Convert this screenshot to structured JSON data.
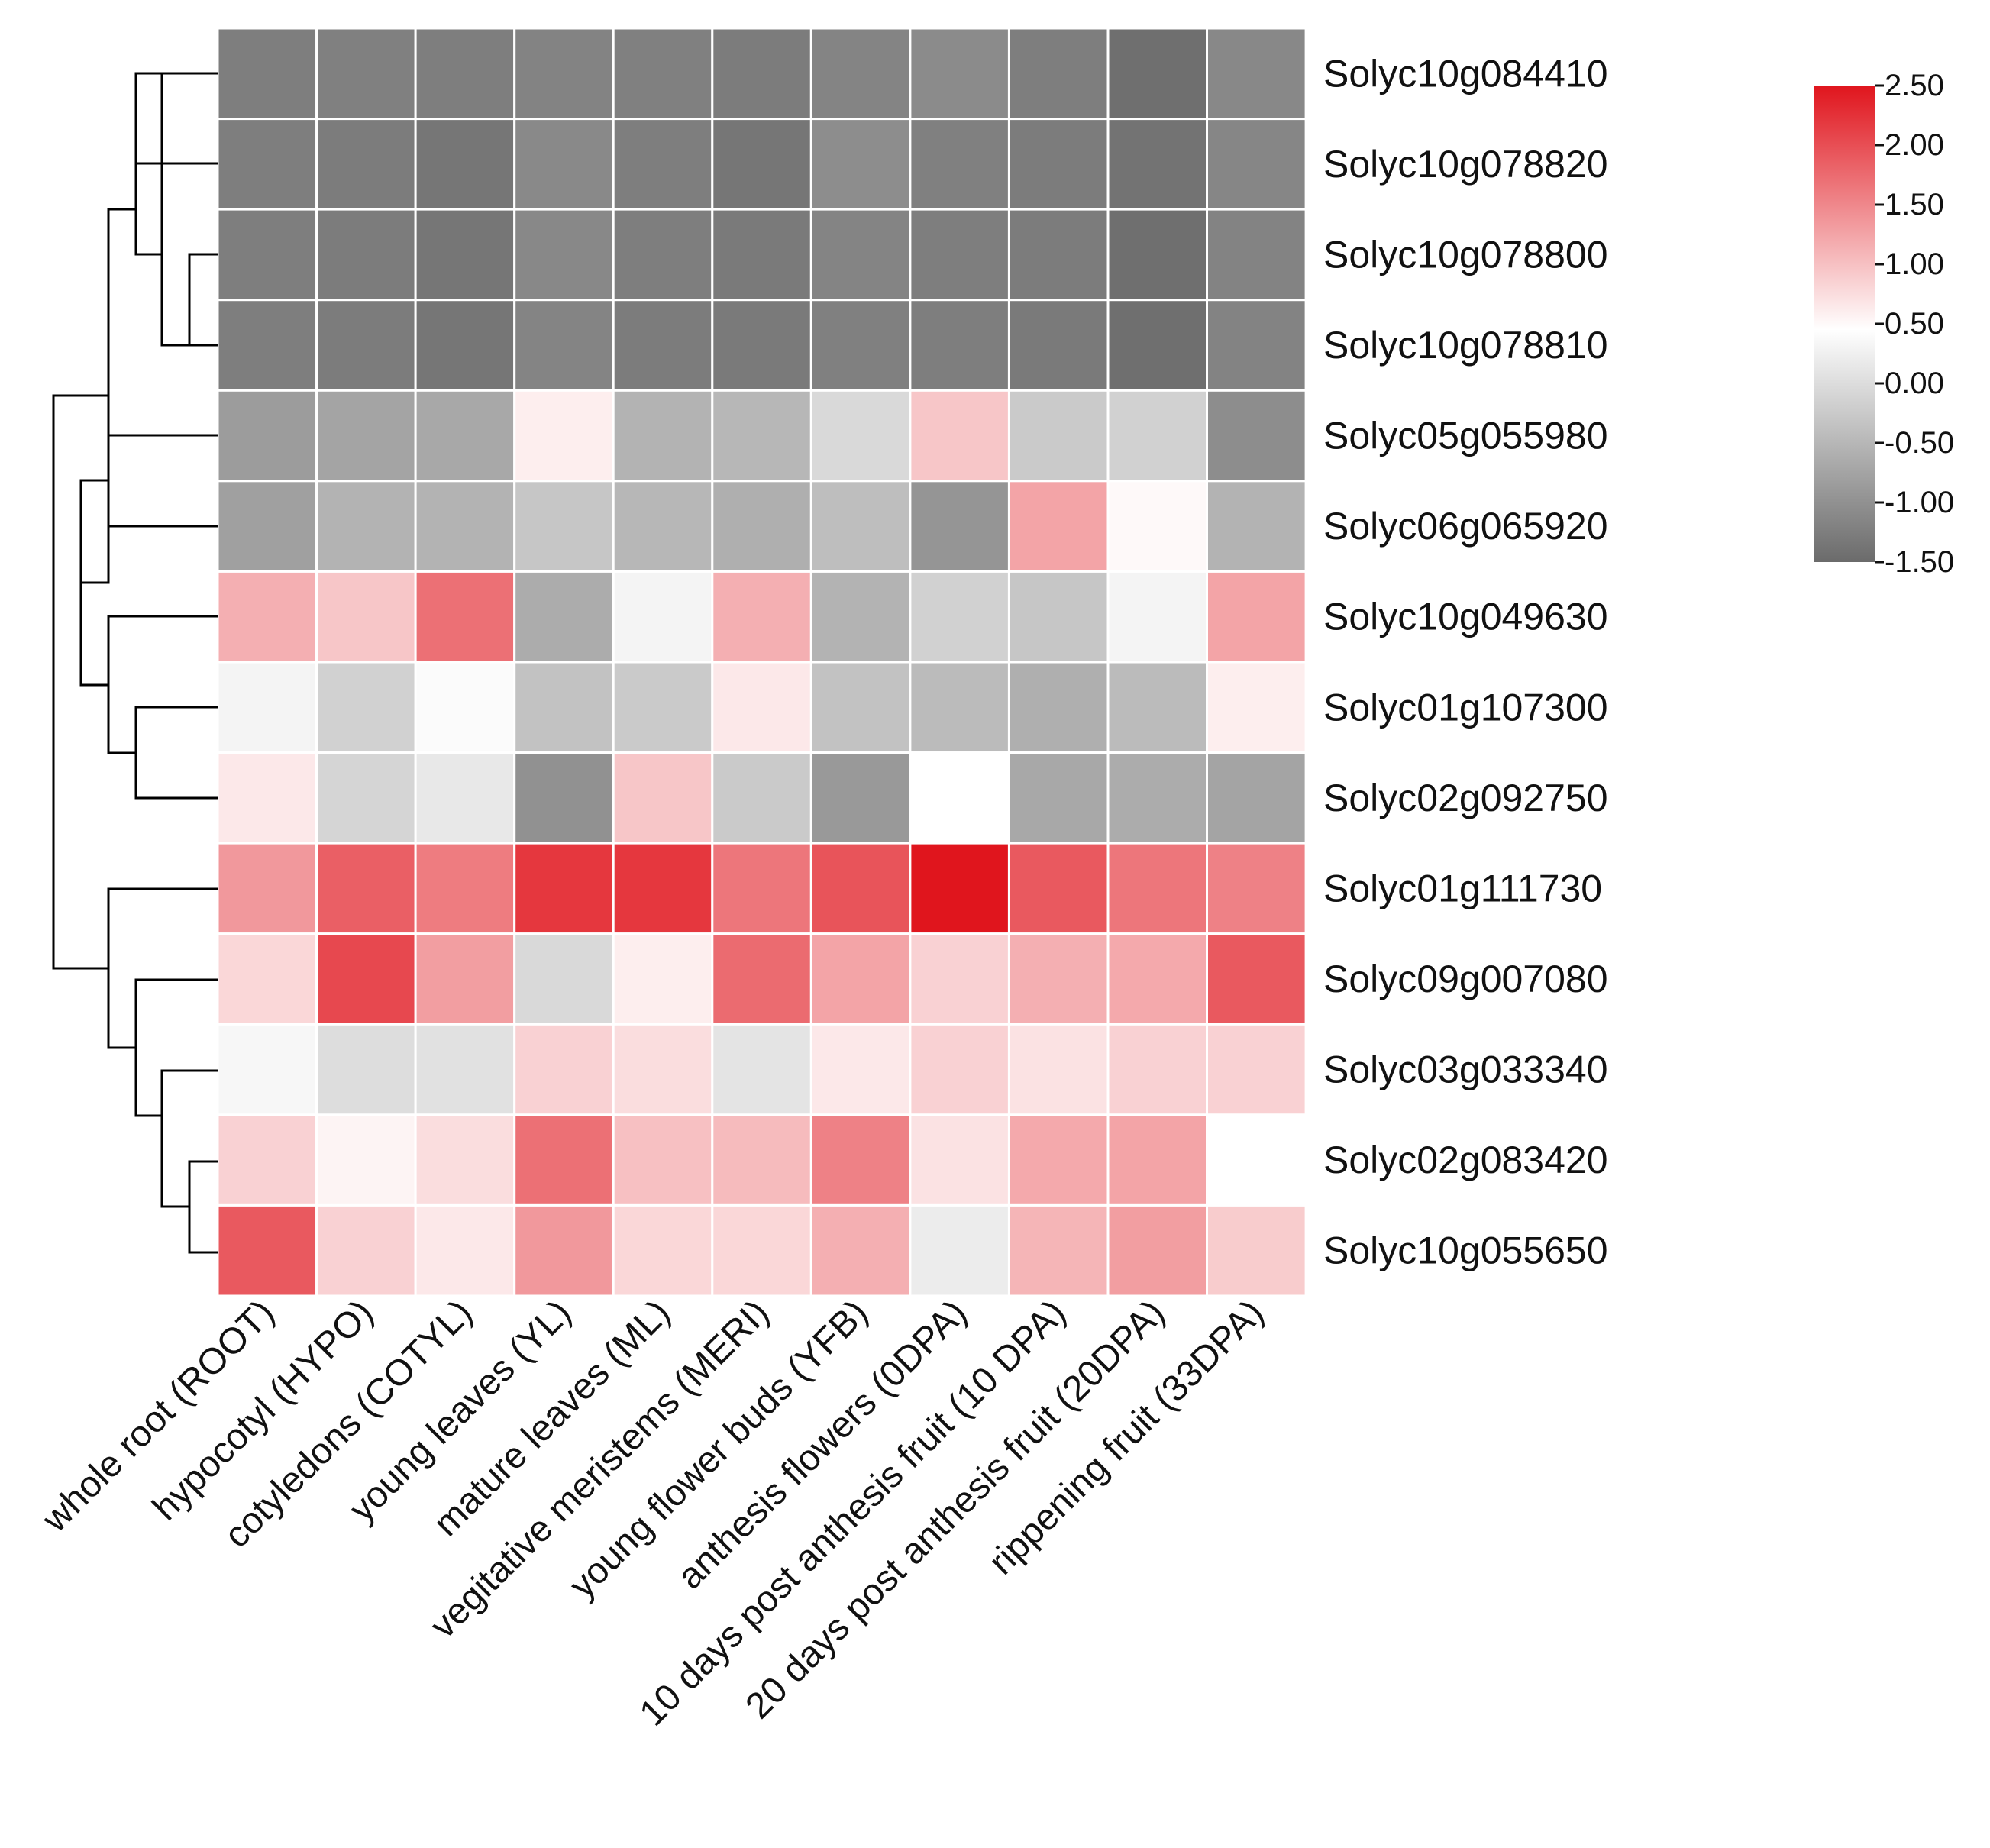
{
  "chart_data": {
    "type": "heatmap",
    "title": "",
    "rows": [
      "Solyc10g084410",
      "Solyc10g078820",
      "Solyc10g078800",
      "Solyc10g078810",
      "Solyc05g055980",
      "Solyc06g065920",
      "Solyc10g049630",
      "Solyc01g107300",
      "Solyc02g092750",
      "Solyc01g111730",
      "Solyc09g007080",
      "Solyc03g033340",
      "Solyc02g083420",
      "Solyc10g055650"
    ],
    "columns": [
      "whole root (ROOT)",
      "hypocotyl (HYPO)",
      "cotyledons (COTYL)",
      "young leaves (YL)",
      "mature leaves (ML)",
      "vegitative meristems (MERI)",
      "young flower buds (YFB)",
      "anthesis flowers (0DPA)",
      "10 days post anthesis fruit (10 DPA)",
      "20 days post anthesis fruit (20DPA)",
      "rippening fruit (33DPA)"
    ],
    "values": [
      [
        -1.25,
        -1.22,
        -1.25,
        -1.18,
        -1.22,
        -1.27,
        -1.17,
        -1.08,
        -1.25,
        -1.45,
        -1.12
      ],
      [
        -1.25,
        -1.28,
        -1.35,
        -1.1,
        -1.25,
        -1.35,
        -1.05,
        -1.22,
        -1.28,
        -1.4,
        -1.15
      ],
      [
        -1.25,
        -1.28,
        -1.35,
        -1.12,
        -1.25,
        -1.3,
        -1.17,
        -1.25,
        -1.28,
        -1.45,
        -1.18
      ],
      [
        -1.25,
        -1.28,
        -1.35,
        -1.17,
        -1.28,
        -1.3,
        -1.22,
        -1.25,
        -1.3,
        -1.45,
        -1.18
      ],
      [
        -0.85,
        -0.75,
        -0.7,
        0.6,
        -0.55,
        -0.5,
        -0.05,
        0.95,
        -0.25,
        -0.15,
        -1.05
      ],
      [
        -0.8,
        -0.55,
        -0.55,
        -0.3,
        -0.5,
        -0.6,
        -0.4,
        -0.95,
        1.25,
        0.5,
        -0.55
      ],
      [
        1.15,
        0.95,
        1.7,
        -0.65,
        0.3,
        1.15,
        -0.55,
        -0.15,
        -0.3,
        0.3,
        1.25
      ],
      [
        0.3,
        -0.15,
        0.4,
        -0.35,
        -0.25,
        0.65,
        -0.35,
        -0.45,
        -0.6,
        -0.45,
        0.6
      ],
      [
        0.65,
        -0.1,
        0.15,
        -1.0,
        0.95,
        -0.25,
        -0.9,
        0.45,
        -0.7,
        -0.65,
        -0.75
      ],
      [
        1.35,
        1.85,
        1.6,
        2.2,
        2.2,
        1.65,
        1.95,
        2.5,
        1.9,
        1.65,
        1.55
      ],
      [
        0.8,
        2.05,
        1.3,
        -0.05,
        0.6,
        1.75,
        1.25,
        0.85,
        1.15,
        1.2,
        1.9
      ],
      [
        0.35,
        0.0,
        0.05,
        0.85,
        0.75,
        0.1,
        0.65,
        0.85,
        0.7,
        0.85,
        0.85
      ],
      [
        0.85,
        0.55,
        0.75,
        1.7,
        1.0,
        1.05,
        1.55,
        0.7,
        1.2,
        1.25,
        0.45
      ],
      [
        1.9,
        0.85,
        0.65,
        1.35,
        0.8,
        0.8,
        1.15,
        0.2,
        1.1,
        1.3,
        0.9
      ]
    ],
    "colorbar": {
      "min": -1.5,
      "max": 2.5,
      "ticks": [
        "2.50",
        "2.00",
        "1.50",
        "1.00",
        "0.50",
        "0.00",
        "-0.50",
        "-1.00",
        "-1.50"
      ],
      "colors": {
        "low": "#6b6b6b",
        "mid": "#ffffff",
        "high": "#e0151d",
        "mid_value": 0.45
      }
    },
    "legend_position": "top-right",
    "row_dendrogram": true
  }
}
